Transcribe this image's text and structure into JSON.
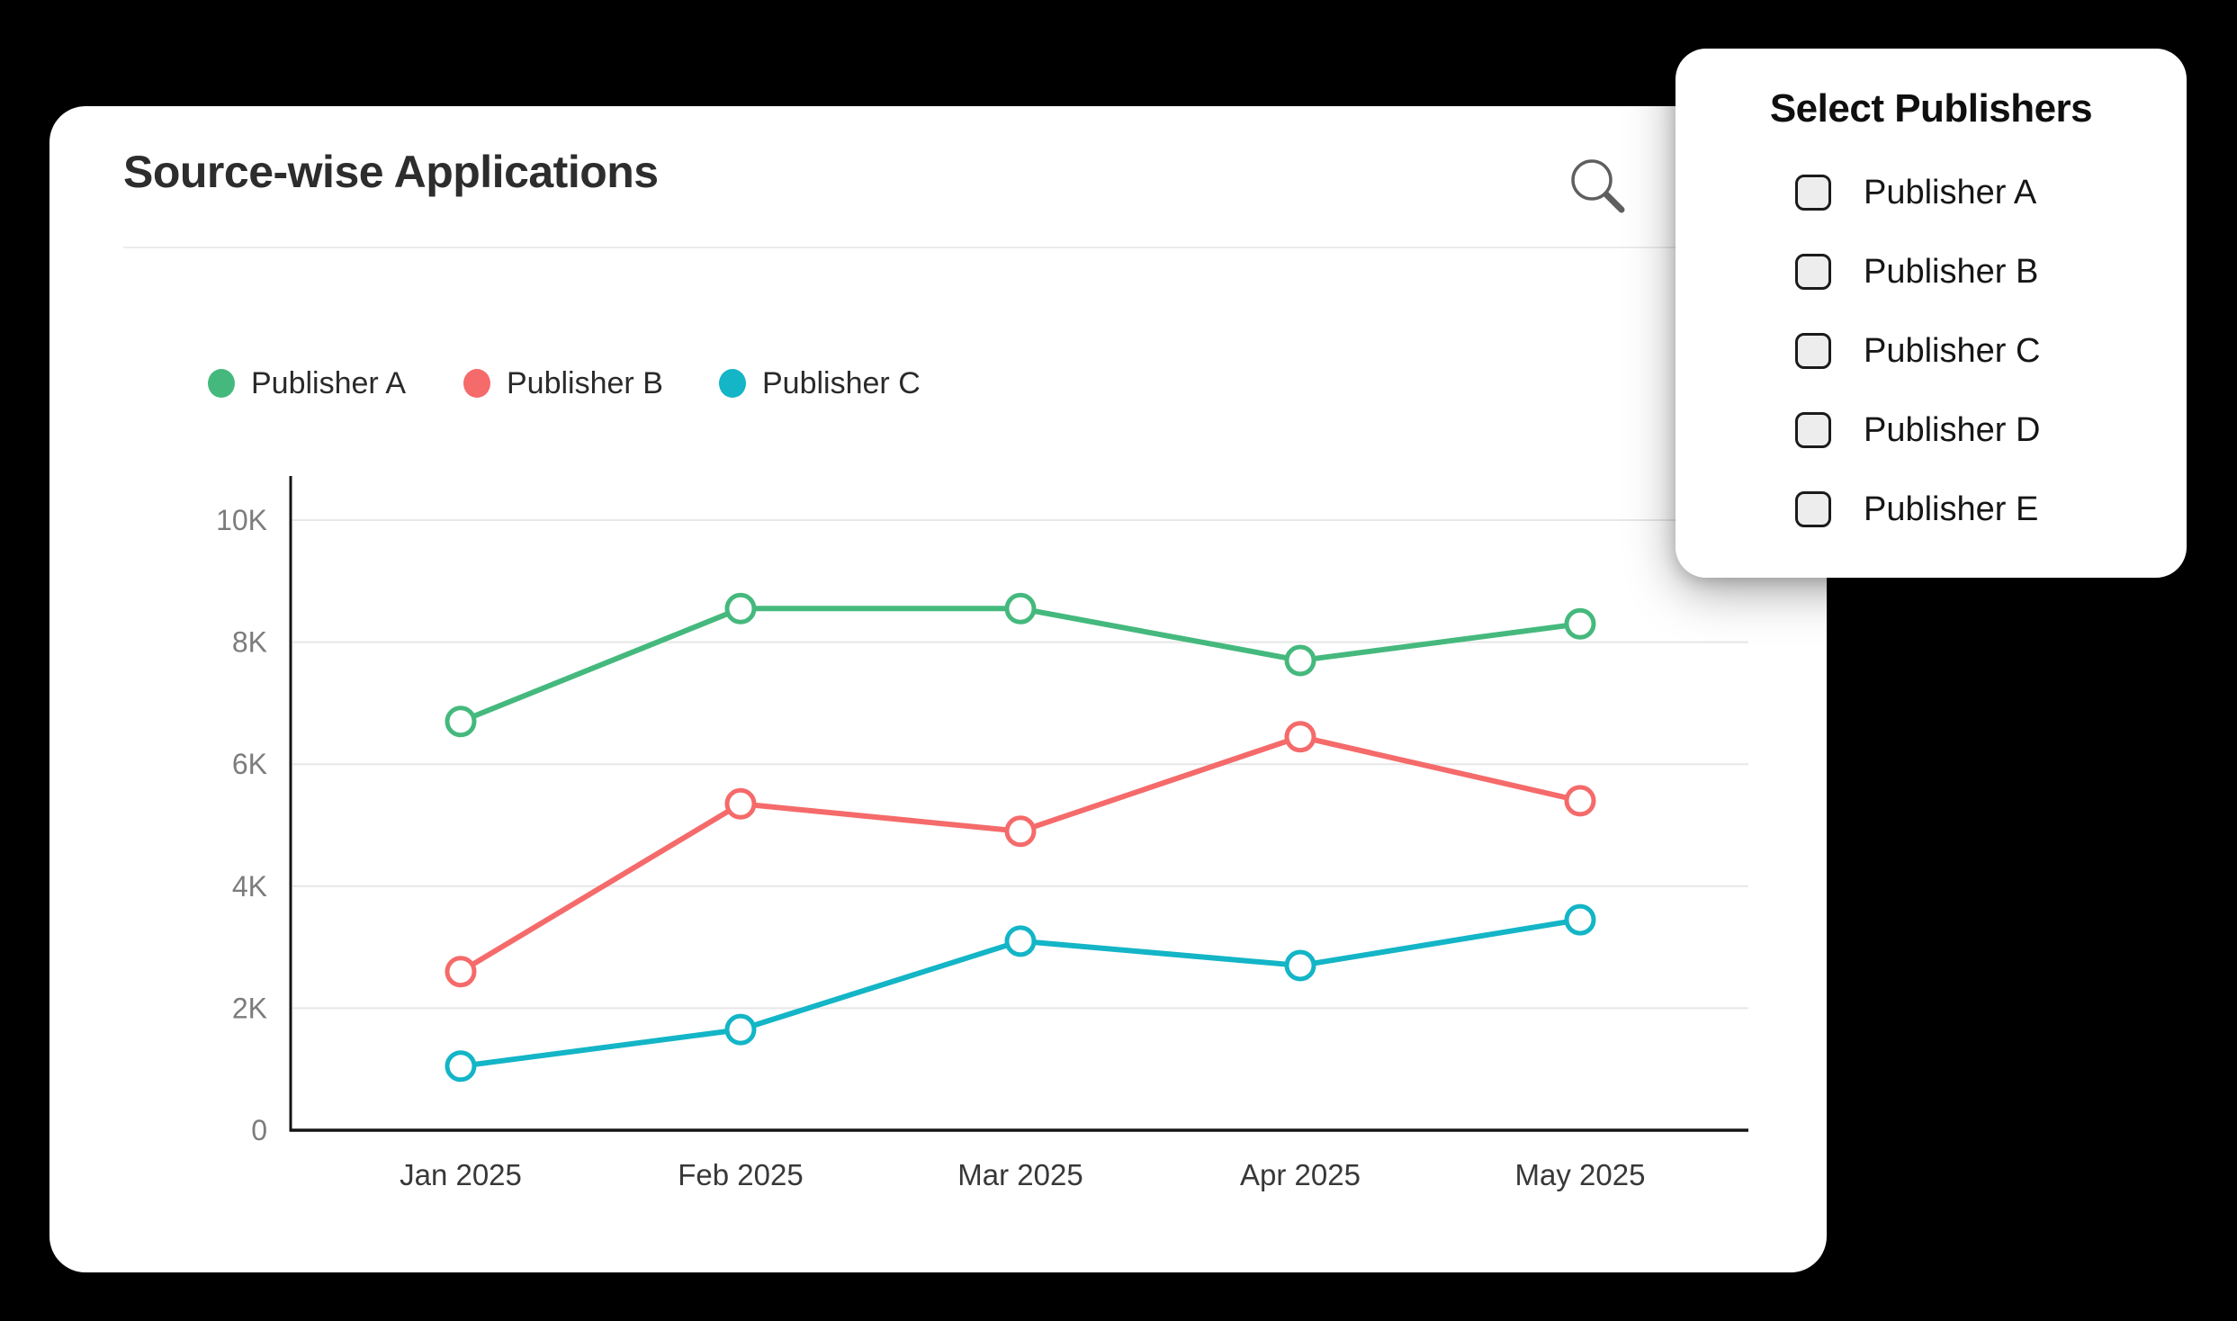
{
  "card": {
    "title": "Source-wise Applications"
  },
  "toolbar": {
    "search_icon": "magnifier"
  },
  "legend": [
    {
      "label": "Publisher A",
      "color": "#45b97d"
    },
    {
      "label": "Publisher B",
      "color": "#f56a6a"
    },
    {
      "label": "Publisher C",
      "color": "#13b5c6"
    }
  ],
  "chart_data": {
    "type": "line",
    "title": "Source-wise Applications",
    "categories": [
      "Jan 2025",
      "Feb 2025",
      "Mar 2025",
      "Apr 2025",
      "May 2025"
    ],
    "series": [
      {
        "name": "Publisher A",
        "color": "#45b97d",
        "values": [
          6700,
          8550,
          8550,
          7700,
          8300
        ]
      },
      {
        "name": "Publisher B",
        "color": "#f56a6a",
        "values": [
          2600,
          5350,
          4900,
          6450,
          5400
        ]
      },
      {
        "name": "Publisher C",
        "color": "#13b5c6",
        "values": [
          1050,
          1650,
          3100,
          2700,
          3450
        ]
      }
    ],
    "xlabel": "",
    "ylabel": "",
    "ylim": [
      0,
      10000
    ],
    "yticks": [
      {
        "value": 0,
        "label": "0"
      },
      {
        "value": 2000,
        "label": "2K"
      },
      {
        "value": 4000,
        "label": "4K"
      },
      {
        "value": 6000,
        "label": "6K"
      },
      {
        "value": 8000,
        "label": "8K"
      },
      {
        "value": 10000,
        "label": "10K"
      }
    ],
    "grid": true,
    "legend_position": "top-left",
    "marker": "open-circle"
  },
  "panel": {
    "title": "Select Publishers",
    "options": [
      {
        "label": "Publisher A",
        "checked": false
      },
      {
        "label": "Publisher B",
        "checked": false
      },
      {
        "label": "Publisher C",
        "checked": false
      },
      {
        "label": "Publisher D",
        "checked": false
      },
      {
        "label": "Publisher E",
        "checked": false
      }
    ]
  },
  "colors": {
    "page_background": "#000000",
    "card_background": "#ffffff",
    "axis": "#141414",
    "gridline": "#e7e7e7",
    "y_tick_label": "#7c7c7c",
    "x_tick_label": "#383838",
    "title_text": "#2d2d2d",
    "search_icon": "#5f5f5f"
  }
}
